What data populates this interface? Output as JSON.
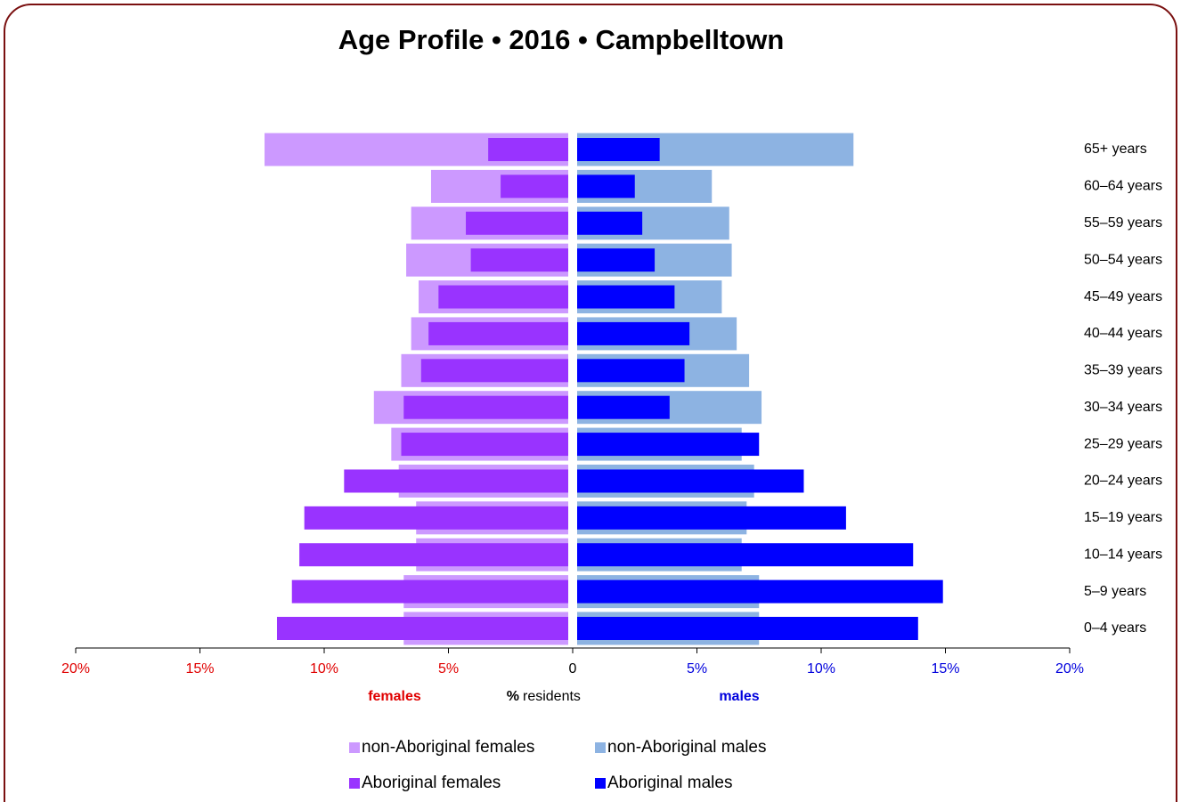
{
  "chart_data": {
    "type": "pyramid",
    "title": "Age Profile  •  2016  •  Campbelltown",
    "categories": [
      "65+ years",
      "60–64 years",
      "55–59 years",
      "50–54 years",
      "45–49 years",
      "40–44 years",
      "35–39 years",
      "30–34 years",
      "25–29 years",
      "20–24 years",
      "15–19 years",
      "10–14 years",
      "5–9 years",
      "0–4 years"
    ],
    "series": [
      {
        "name": "non-Aboriginal females",
        "side": "left",
        "color": "#cc99ff",
        "values": [
          12.4,
          5.7,
          6.5,
          6.7,
          6.2,
          6.5,
          6.9,
          8.0,
          7.3,
          7.0,
          6.3,
          6.3,
          6.8,
          6.8
        ]
      },
      {
        "name": "Aboriginal females",
        "side": "left",
        "color": "#9933ff",
        "values": [
          3.4,
          2.9,
          4.3,
          4.1,
          5.4,
          5.8,
          6.1,
          6.8,
          6.9,
          9.2,
          10.8,
          11.0,
          11.3,
          11.9
        ]
      },
      {
        "name": "non-Aboriginal males",
        "side": "right",
        "color": "#8db3e2",
        "values": [
          11.3,
          5.6,
          6.3,
          6.4,
          6.0,
          6.6,
          7.1,
          7.6,
          6.8,
          7.3,
          7.0,
          6.8,
          7.5,
          7.5
        ]
      },
      {
        "name": "Aboriginal males",
        "side": "right",
        "color": "#0000ff",
        "values": [
          3.5,
          2.5,
          2.8,
          3.3,
          4.1,
          4.7,
          4.5,
          3.9,
          7.5,
          9.3,
          11.0,
          13.7,
          14.9,
          13.9
        ]
      }
    ],
    "xlim": [
      0,
      20
    ],
    "xticks_left": [
      {
        "value": 20,
        "label": "20%"
      },
      {
        "value": 15,
        "label": "15%"
      },
      {
        "value": 10,
        "label": "10%"
      },
      {
        "value": 5,
        "label": "5%"
      },
      0
    ],
    "xticks_right": [
      {
        "value": 5,
        "label": "5%"
      },
      {
        "value": 10,
        "label": "10%"
      },
      {
        "value": 15,
        "label": "15%"
      },
      {
        "value": 20,
        "label": "20%"
      }
    ],
    "left_label": "females",
    "right_label": "males",
    "center_label_unit": "%",
    "center_label": "residents",
    "left_color": "#e00000",
    "right_color": "#0000dd"
  }
}
